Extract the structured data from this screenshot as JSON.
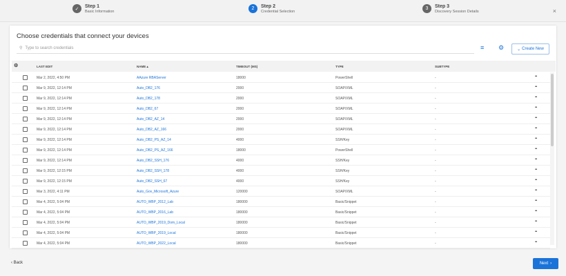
{
  "steps": [
    {
      "num": "✓",
      "title": "Step 1",
      "subtitle": "Basic Information",
      "state": "done"
    },
    {
      "num": "2",
      "title": "Step 2",
      "subtitle": "Credential Selection",
      "state": "active"
    },
    {
      "num": "3",
      "title": "Step 3",
      "subtitle": "Discovery Session Details",
      "state": "pending"
    }
  ],
  "close_label": "×",
  "title": "Choose credentials that connect your devices",
  "search": {
    "placeholder": "Type to search credentials"
  },
  "create_new": "Create New",
  "columns": {
    "last_edit": "LAST EDIT",
    "name": "NAME ▴",
    "timeout": "TIMEOUT (MS)",
    "type": "TYPE",
    "subtype": "SUBTYPE"
  },
  "rows": [
    {
      "last_edit": "Mar 2, 2022, 4:50 PM",
      "name": "AAzure RBAServer",
      "timeout": "18000",
      "type": "PowerShell",
      "subtype": "-"
    },
    {
      "last_edit": "Mar 9, 2022, 12:14 PM",
      "name": "Auto_DB2_176",
      "timeout": "2000",
      "type": "SOAP/XML",
      "subtype": "-"
    },
    {
      "last_edit": "Mar 9, 2022, 12:14 PM",
      "name": "Auto_DB2_178",
      "timeout": "2000",
      "type": "SOAP/XML",
      "subtype": "-"
    },
    {
      "last_edit": "Mar 9, 2022, 12:14 PM",
      "name": "Auto_DB2_67",
      "timeout": "2000",
      "type": "SOAP/XML",
      "subtype": "-"
    },
    {
      "last_edit": "Mar 9, 2022, 12:14 PM",
      "name": "Auto_DB2_AZ_14",
      "timeout": "2000",
      "type": "SOAP/XML",
      "subtype": "-"
    },
    {
      "last_edit": "Mar 9, 2022, 12:14 PM",
      "name": "Auto_DB2_AZ_166",
      "timeout": "2000",
      "type": "SOAP/XML",
      "subtype": "-"
    },
    {
      "last_edit": "Mar 9, 2022, 12:14 PM",
      "name": "Auto_DB2_PS_AZ_14",
      "timeout": "4000",
      "type": "SSH/Key",
      "subtype": "-"
    },
    {
      "last_edit": "Mar 9, 2022, 12:14 PM",
      "name": "Auto_DB2_PS_AZ_166",
      "timeout": "18000",
      "type": "PowerShell",
      "subtype": "-"
    },
    {
      "last_edit": "Mar 9, 2022, 12:14 PM",
      "name": "Auto_DB2_SSH_176",
      "timeout": "4000",
      "type": "SSH/Key",
      "subtype": "-"
    },
    {
      "last_edit": "Mar 9, 2022, 12:15 PM",
      "name": "Auto_DB2_SSH_178",
      "timeout": "4000",
      "type": "SSH/Key",
      "subtype": "-"
    },
    {
      "last_edit": "Mar 9, 2022, 12:15 PM",
      "name": "Auto_DB2_SSH_67",
      "timeout": "4000",
      "type": "SSH/Key",
      "subtype": "-"
    },
    {
      "last_edit": "Mar 3, 2022, 4:11 PM",
      "name": "Auto_Gov_Microsoft_Azure",
      "timeout": "120000",
      "type": "SOAP/XML",
      "subtype": "-"
    },
    {
      "last_edit": "Mar 4, 2022, 5:04 PM",
      "name": "AUTO_WBP_2012_Lab",
      "timeout": "180000",
      "type": "Basic/Snippet",
      "subtype": "-"
    },
    {
      "last_edit": "Mar 4, 2022, 5:04 PM",
      "name": "AUTO_WBP_2016_Lab",
      "timeout": "180000",
      "type": "Basic/Snippet",
      "subtype": "-"
    },
    {
      "last_edit": "Mar 4, 2022, 5:04 PM",
      "name": "AUTO_WBP_2019_Dom_Local",
      "timeout": "180000",
      "type": "Basic/Snippet",
      "subtype": "-"
    },
    {
      "last_edit": "Mar 4, 2022, 5:04 PM",
      "name": "AUTO_WBP_2019_Local",
      "timeout": "180000",
      "type": "Basic/Snippet",
      "subtype": "-"
    },
    {
      "last_edit": "Mar 4, 2022, 5:04 PM",
      "name": "AUTO_WBP_2022_Local",
      "timeout": "180000",
      "type": "Basic/Snippet",
      "subtype": "-"
    }
  ],
  "row_menu": "•••",
  "back": "Back",
  "next": "Next",
  "colors": {
    "accent": "#1a73d9"
  }
}
